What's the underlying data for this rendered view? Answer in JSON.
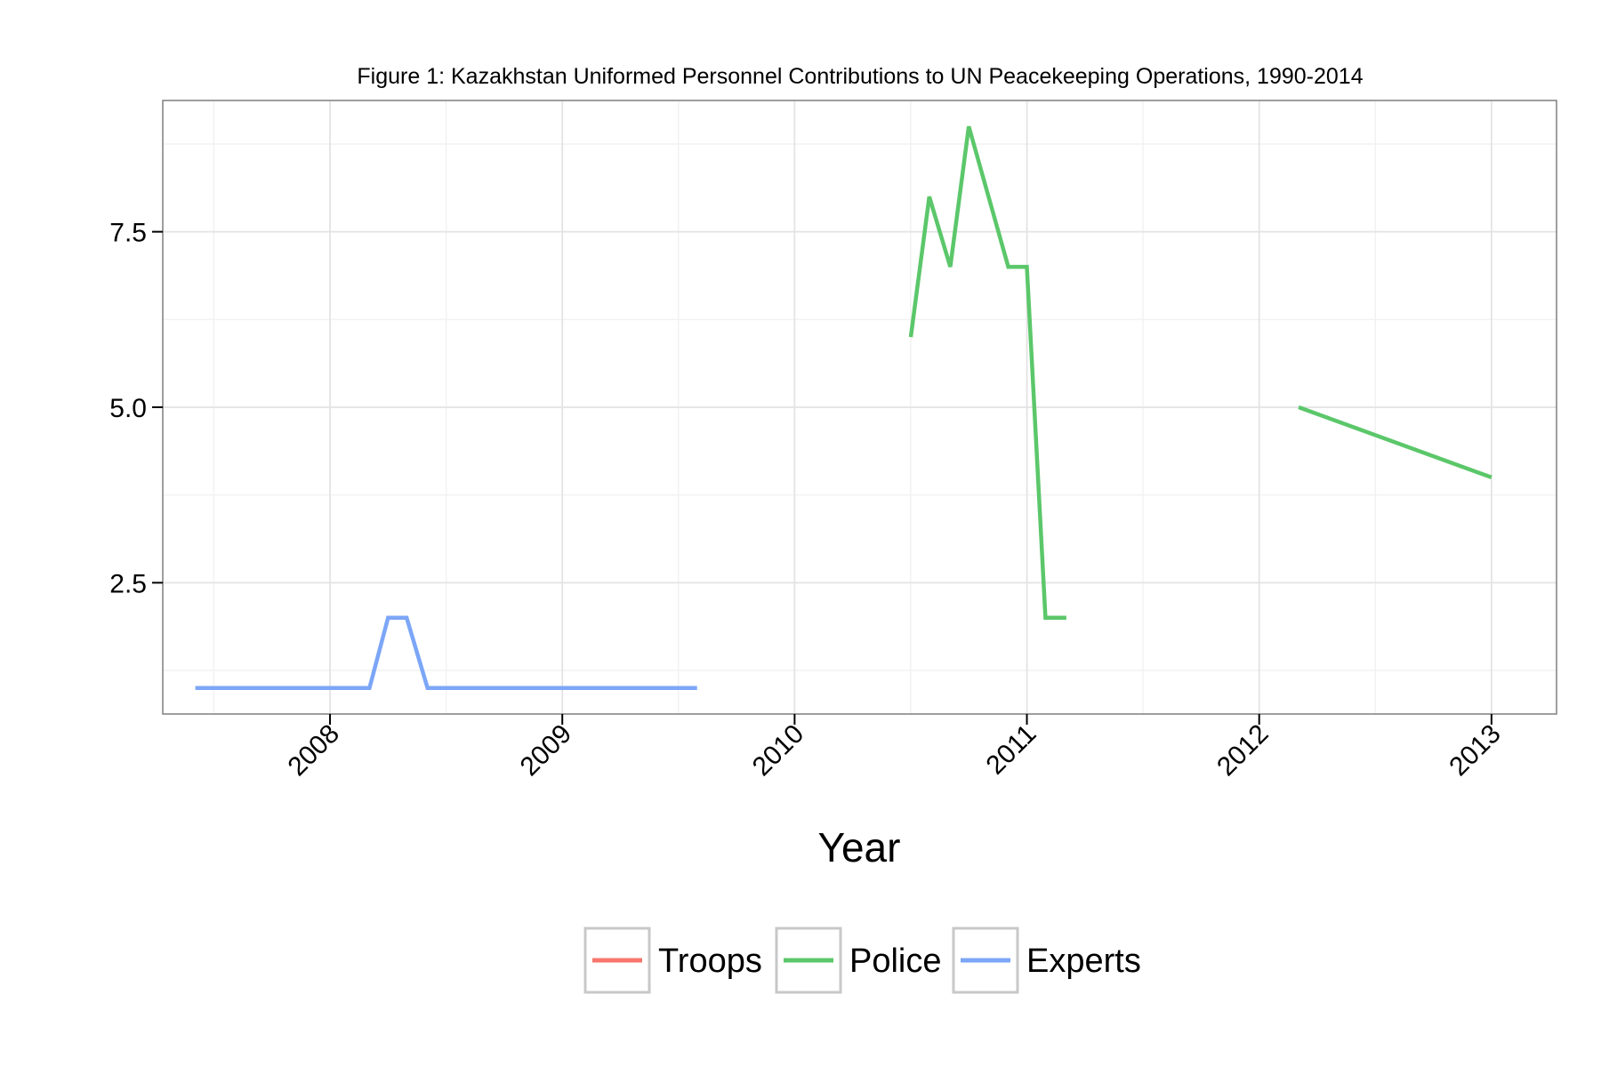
{
  "chart_data": {
    "type": "line",
    "title": "Figure 1: Kazakhstan Uniformed Personnel Contributions to UN Peacekeeping Operations, 1990-2014",
    "xlabel": "Year",
    "ylabel": "",
    "xlim": [
      2007.28,
      2013.28
    ],
    "ylim": [
      0.63,
      9.37
    ],
    "x_ticks": [
      2008,
      2009,
      2010,
      2011,
      2012,
      2013
    ],
    "y_ticks": [
      2.5,
      5.0,
      7.5
    ],
    "y_tick_labels": [
      "2.5",
      "5.0",
      "7.5"
    ],
    "x_tick_labels": [
      "2008",
      "2009",
      "2010",
      "2011",
      "2012",
      "2013"
    ],
    "grid": true,
    "legend_position": "bottom",
    "series": [
      {
        "name": "Troops",
        "color": "#F8766D",
        "segments": []
      },
      {
        "name": "Police",
        "color": "#5BC76A",
        "segments": [
          [
            [
              2010.5,
              6
            ],
            [
              2010.58,
              8
            ],
            [
              2010.67,
              7
            ],
            [
              2010.75,
              9
            ],
            [
              2010.92,
              7
            ],
            [
              2011.0,
              7
            ],
            [
              2011.08,
              2
            ],
            [
              2011.17,
              2
            ]
          ],
          [
            [
              2012.17,
              5
            ],
            [
              2013.0,
              4
            ]
          ]
        ]
      },
      {
        "name": "Experts",
        "color": "#7CA6F7",
        "segments": [
          [
            [
              2007.42,
              1
            ],
            [
              2008.17,
              1
            ],
            [
              2008.25,
              2
            ],
            [
              2008.33,
              2
            ],
            [
              2008.42,
              1
            ],
            [
              2009.58,
              1
            ]
          ]
        ]
      }
    ]
  }
}
